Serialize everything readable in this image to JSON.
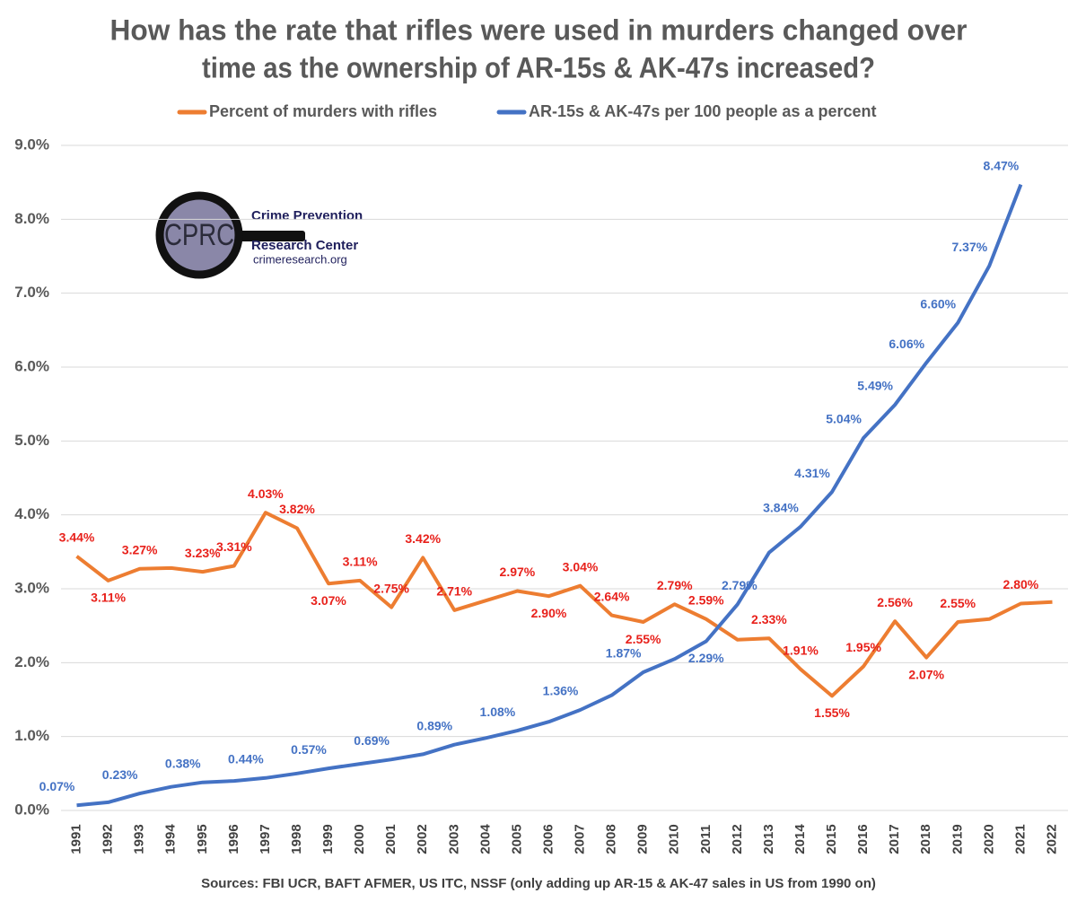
{
  "chart_data": {
    "type": "line",
    "title": [
      "How has the rate that rifles were used in murders changed over",
      "time as the ownership of AR-15s & AK-47s increased?"
    ],
    "source": "Sources: FBI UCR, BAFT AFMER, US ITC, NSSF (only adding up AR-15 & AK-47 sales in US from 1990 on)",
    "logo": {
      "mark": "CPRC",
      "line1": "Crime Prevention",
      "line2": "Research Center",
      "url": "crimeresearch.org"
    },
    "categories": [
      "1991",
      "1992",
      "1993",
      "1994",
      "1995",
      "1996",
      "1997",
      "1998",
      "1999",
      "2000",
      "2001",
      "2002",
      "2003",
      "2004",
      "2005",
      "2006",
      "2007",
      "2008",
      "2009",
      "2010",
      "2011",
      "2012",
      "2013",
      "2014",
      "2015",
      "2016",
      "2017",
      "2018",
      "2019",
      "2020",
      "2021",
      "2022"
    ],
    "series": [
      {
        "name": "Percent of murders with rifles",
        "color": "#ED7D31",
        "label_color": "#E8211B",
        "values": [
          3.44,
          3.11,
          3.27,
          3.28,
          3.23,
          3.31,
          4.03,
          3.82,
          3.07,
          3.11,
          2.75,
          3.42,
          2.71,
          2.84,
          2.97,
          2.9,
          3.04,
          2.64,
          2.55,
          2.79,
          2.59,
          2.31,
          2.33,
          1.91,
          1.55,
          1.95,
          2.56,
          2.07,
          2.55,
          2.59,
          2.8,
          2.82
        ],
        "value_labels": [
          "3.44%",
          "3.11%",
          "3.27%",
          null,
          "3.23%",
          "3.31%",
          "4.03%",
          "3.82%",
          "3.07%",
          "3.11%",
          "2.75%",
          "3.42%",
          "2.71%",
          null,
          "2.97%",
          "2.90%",
          "3.04%",
          "2.64%",
          "2.55%",
          "2.79%",
          "2.59%",
          null,
          "2.33%",
          "1.91%",
          "1.55%",
          "1.95%",
          "2.56%",
          "2.07%",
          "2.55%",
          null,
          "2.80%",
          null
        ]
      },
      {
        "name": "AR-15s & AK-47s per 100 people as a percent",
        "color": "#4472C4",
        "label_color": "#4472C4",
        "values": [
          0.07,
          0.11,
          0.23,
          0.32,
          0.38,
          0.4,
          0.44,
          0.5,
          0.57,
          0.63,
          0.69,
          0.76,
          0.89,
          0.98,
          1.08,
          1.2,
          1.36,
          1.56,
          1.87,
          2.05,
          2.29,
          2.79,
          3.49,
          3.84,
          4.31,
          5.04,
          5.49,
          6.06,
          6.6,
          7.37,
          8.47,
          null
        ],
        "value_labels": [
          "0.07%",
          null,
          "0.23%",
          null,
          "0.38%",
          null,
          "0.44%",
          null,
          "0.57%",
          null,
          "0.69%",
          null,
          "0.89%",
          null,
          "1.08%",
          null,
          "1.36%",
          null,
          "1.87%",
          null,
          "2.29%",
          "2.79%",
          null,
          "3.84%",
          "4.31%",
          "5.04%",
          "5.49%",
          "6.06%",
          "6.60%",
          "7.37%",
          "8.47%",
          null
        ]
      }
    ],
    "ylim": [
      0,
      9
    ],
    "yticks": [
      {
        "value": 0,
        "label": "0.0%"
      },
      {
        "value": 1,
        "label": "1.0%"
      },
      {
        "value": 2,
        "label": "2.0%"
      },
      {
        "value": 3,
        "label": "3.0%"
      },
      {
        "value": 4,
        "label": "4.0%"
      },
      {
        "value": 5,
        "label": "5.0%"
      },
      {
        "value": 6,
        "label": "6.0%"
      },
      {
        "value": 7,
        "label": "7.0%"
      },
      {
        "value": 8,
        "label": "8.0%"
      },
      {
        "value": 9,
        "label": "9.0%"
      }
    ],
    "grid": true,
    "legend": "top"
  }
}
